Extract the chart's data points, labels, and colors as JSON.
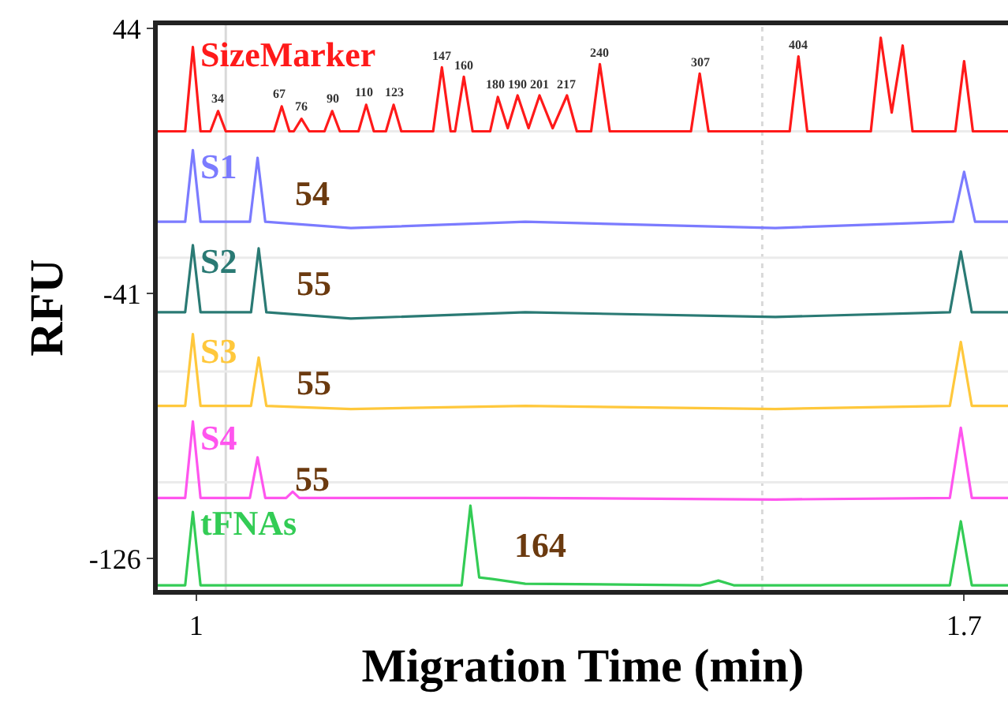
{
  "chart_data": {
    "type": "line",
    "xlabel": "Migration Time (min)",
    "ylabel": "RFU",
    "xlim": [
      0.965,
      1.74
    ],
    "xticks": [
      1,
      1.7
    ],
    "ylim": [
      -136,
      45
    ],
    "yticks": [
      44,
      -41,
      -126
    ],
    "grid": false,
    "legend": false,
    "marker": "none",
    "line_style": "solid",
    "series": [
      {
        "name": "SizeMarker",
        "color": "#ff1a1a",
        "x": [
          0.965,
          0.99,
          0.997,
          1.004,
          1.013,
          1.02,
          1.027,
          1.071,
          1.078,
          1.085,
          1.089,
          1.096,
          1.103,
          1.117,
          1.124,
          1.131,
          1.148,
          1.155,
          1.162,
          1.173,
          1.18,
          1.187,
          1.216,
          1.224,
          1.232,
          1.236,
          1.244,
          1.252,
          1.268,
          1.275,
          1.284,
          1.293,
          1.303,
          1.313,
          1.325,
          1.338,
          1.347,
          1.36,
          1.368,
          1.377,
          1.451,
          1.459,
          1.467,
          1.541,
          1.549,
          1.557,
          1.615,
          1.624,
          1.634,
          1.644,
          1.653,
          1.692,
          1.7,
          1.708,
          1.74
        ],
        "values": [
          11,
          11,
          38,
          11,
          11,
          17.5,
          11,
          11,
          19,
          11,
          11,
          15,
          11,
          11,
          17.5,
          11,
          11,
          19.5,
          11,
          11,
          19.5,
          11,
          11,
          31.5,
          11,
          11,
          28.5,
          11,
          11,
          22,
          12,
          22.5,
          12,
          22.5,
          12,
          22.5,
          11,
          11,
          32.5,
          11,
          11,
          29.5,
          11,
          11,
          35,
          11,
          11,
          41,
          17,
          38.5,
          11,
          11,
          33.5,
          11,
          11
        ]
      },
      {
        "name": "S1",
        "color": "#7b7bff",
        "x": [
          0.965,
          0.99,
          0.997,
          1.004,
          1.049,
          1.056,
          1.063,
          1.141,
          1.3,
          1.528,
          1.69,
          1.7,
          1.71,
          1.74
        ],
        "values": [
          -18,
          -18,
          5,
          -18,
          -18,
          2.5,
          -18,
          -20,
          -18,
          -20,
          -18,
          -2,
          -18,
          -18
        ]
      },
      {
        "name": "S2",
        "color": "#2a7a74",
        "x": [
          0.965,
          0.99,
          0.997,
          1.004,
          1.05,
          1.057,
          1.064,
          1.141,
          1.3,
          1.528,
          1.687,
          1.697,
          1.707,
          1.74
        ],
        "values": [
          -47,
          -47,
          -25.5,
          -47,
          -47,
          -26.5,
          -47,
          -49,
          -47,
          -48.5,
          -47,
          -27.5,
          -47,
          -47
        ]
      },
      {
        "name": "S3",
        "color": "#ffc83c",
        "x": [
          0.965,
          0.99,
          0.997,
          1.004,
          1.05,
          1.057,
          1.064,
          1.141,
          1.3,
          1.528,
          1.687,
          1.697,
          1.707,
          1.74
        ],
        "values": [
          -77,
          -77,
          -54,
          -77,
          -77,
          -61.5,
          -77,
          -78,
          -77,
          -78,
          -77,
          -56.5,
          -77,
          -77
        ]
      },
      {
        "name": "S4",
        "color": "#ff55ee",
        "x": [
          0.965,
          0.99,
          0.997,
          1.004,
          1.049,
          1.056,
          1.063,
          1.082,
          1.088,
          1.094,
          1.3,
          1.528,
          1.687,
          1.697,
          1.707,
          1.74
        ],
        "values": [
          -106.5,
          -106.5,
          -82,
          -106.5,
          -106.5,
          -93.5,
          -106.5,
          -106.5,
          -104.5,
          -106.5,
          -106.5,
          -107,
          -106.5,
          -84,
          -106.5,
          -106.5
        ]
      },
      {
        "name": "tFNAs",
        "color": "#33cc55",
        "x": [
          0.965,
          0.99,
          0.997,
          1.004,
          1.242,
          1.25,
          1.258,
          1.27,
          1.3,
          1.46,
          1.476,
          1.49,
          1.687,
          1.697,
          1.707,
          1.74
        ],
        "values": [
          -134.5,
          -134.5,
          -111,
          -134.5,
          -134.5,
          -109,
          -132,
          -132.5,
          -134,
          -134.5,
          -133,
          -134.5,
          -134.5,
          -114,
          -134.5,
          -134.5
        ]
      }
    ],
    "ref_lines": [
      {
        "axis": "x",
        "value": 1.027,
        "color": "#d9d9d9",
        "line_style": "solid"
      },
      {
        "axis": "x",
        "value": 1.516,
        "color": "#d9d9d9",
        "line_style": "dotted"
      },
      {
        "axis": "y",
        "value": 11,
        "color": "#ebebeb",
        "line_style": "solid"
      },
      {
        "axis": "y",
        "value": -29.5,
        "color": "#ebebeb",
        "line_style": "solid"
      },
      {
        "axis": "y",
        "value": -66,
        "color": "#ebebeb",
        "line_style": "solid"
      },
      {
        "axis": "y",
        "value": -101.5,
        "color": "#ebebeb",
        "line_style": "solid"
      }
    ],
    "annotations": [
      {
        "text": "34",
        "x": 1.02,
        "y": 17.5
      },
      {
        "text": "67",
        "x": 1.076,
        "y": 19
      },
      {
        "text": "76",
        "x": 1.096,
        "y": 15
      },
      {
        "text": "90",
        "x": 1.124,
        "y": 17.5
      },
      {
        "text": "110",
        "x": 1.154,
        "y": 19.5
      },
      {
        "text": "123",
        "x": 1.181,
        "y": 19.5
      },
      {
        "text": "147",
        "x": 1.224,
        "y": 31.5
      },
      {
        "text": "160",
        "x": 1.244,
        "y": 28.5
      },
      {
        "text": "180",
        "x": 1.273,
        "y": 22
      },
      {
        "text": "190",
        "x": 1.293,
        "y": 22.5
      },
      {
        "text": "201",
        "x": 1.313,
        "y": 22.5
      },
      {
        "text": "217",
        "x": 1.338,
        "y": 22.5
      },
      {
        "text": "240",
        "x": 1.368,
        "y": 32.5
      },
      {
        "text": "307",
        "x": 1.459,
        "y": 29.5
      },
      {
        "text": "404",
        "x": 1.549,
        "y": 35
      },
      "54",
      "55",
      "55",
      "55",
      "164"
    ]
  }
}
